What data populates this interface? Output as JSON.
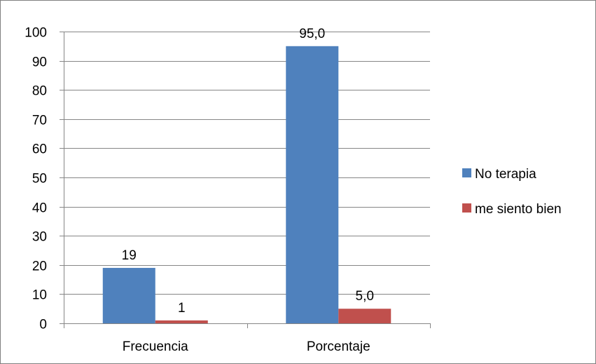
{
  "chart_data": {
    "type": "bar",
    "categories": [
      "Frecuencia",
      "Porcentaje"
    ],
    "series": [
      {
        "name": "No terapia",
        "color": "#4F81BD",
        "values": [
          19,
          95.0
        ],
        "labels": [
          "19",
          "95,0"
        ]
      },
      {
        "name": "me siento bien",
        "color": "#C0504D",
        "values": [
          1,
          5.0
        ],
        "labels": [
          "1",
          "5,0"
        ]
      }
    ],
    "ylim": [
      0,
      100
    ],
    "yticks": [
      "0",
      "10",
      "20",
      "30",
      "40",
      "50",
      "60",
      "70",
      "80",
      "90",
      "100"
    ],
    "grid": true,
    "legend_position": "right"
  }
}
